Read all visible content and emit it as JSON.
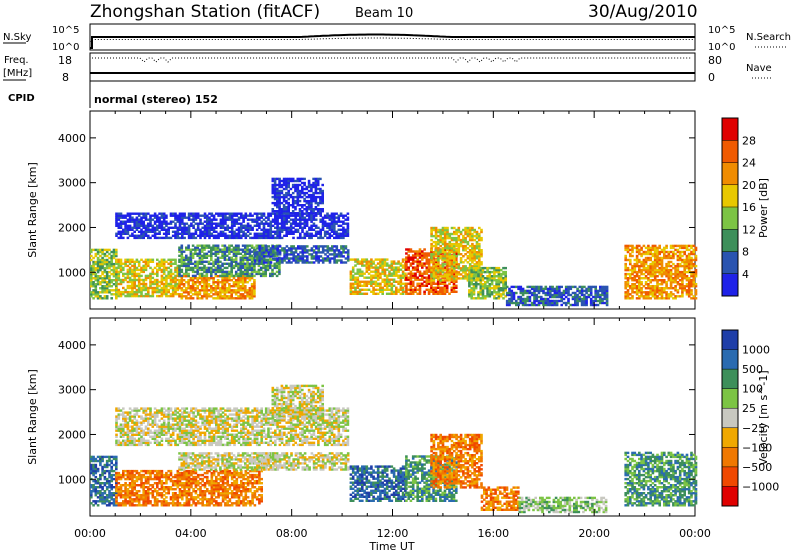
{
  "header": {
    "station": "Zhongshan Station (fitACF)",
    "beam": "Beam 10",
    "date": "30/Aug/2010",
    "cpid_label": "CPID",
    "cpid_value": "normal (stereo) 152"
  },
  "strip_sky": {
    "left_label": "N.Sky",
    "left_ticks": [
      "10^5",
      "10^0"
    ],
    "right_label": "N.Search",
    "right_ticks": [
      "10^5",
      "10^0"
    ]
  },
  "strip_freq": {
    "left_label_1": "Freq.",
    "left_label_2": "[MHz]",
    "left_ticks": [
      "18",
      "8"
    ],
    "right_label": "Nave",
    "right_ticks": [
      "80",
      "0"
    ]
  },
  "x_axis": {
    "label": "Time UT",
    "ticks": [
      "00:00",
      "04:00",
      "08:00",
      "12:00",
      "16:00",
      "20:00",
      "00:00"
    ],
    "range_hours": [
      0,
      24
    ]
  },
  "chart_data": [
    {
      "type": "heatmap",
      "panel": "power",
      "ylabel": "Slant Range [km]",
      "yticks": [
        1000,
        2000,
        3000,
        4000
      ],
      "ylim": [
        180,
        4600
      ],
      "xlim": [
        0,
        24
      ],
      "colorbar_label": "Power [dB]",
      "colorbar_ticks": [
        "4",
        "8",
        "12",
        "16",
        "20",
        "24",
        "28"
      ],
      "colorbar_colors": [
        "#1f22e8",
        "#2a54b0",
        "#3d8f5a",
        "#7cc444",
        "#e8c800",
        "#f08c00",
        "#f05a00",
        "#e00000"
      ],
      "regions": [
        {
          "t0": 0.0,
          "t1": 1.0,
          "r0": 400,
          "r1": 1500,
          "lvl": 3
        },
        {
          "t0": 1.0,
          "t1": 3.5,
          "r0": 450,
          "r1": 1300,
          "lvl": 4
        },
        {
          "t0": 3.5,
          "t1": 6.5,
          "r0": 400,
          "r1": 900,
          "lvl": 5
        },
        {
          "t0": 3.5,
          "t1": 7.5,
          "r0": 900,
          "r1": 1600,
          "lvl": 2
        },
        {
          "t0": 1.0,
          "t1": 10.2,
          "r0": 1750,
          "r1": 2300,
          "lvl": 0
        },
        {
          "t0": 6.5,
          "t1": 10.2,
          "r0": 1200,
          "r1": 1600,
          "lvl": 1
        },
        {
          "t0": 7.2,
          "t1": 9.2,
          "r0": 2300,
          "r1": 3100,
          "lvl": 0
        },
        {
          "t0": 10.3,
          "t1": 12.5,
          "r0": 500,
          "r1": 1300,
          "lvl": 4
        },
        {
          "t0": 12.5,
          "t1": 14.5,
          "r0": 500,
          "r1": 1500,
          "lvl": 6
        },
        {
          "t0": 13.5,
          "t1": 15.5,
          "r0": 800,
          "r1": 2000,
          "lvl": 4
        },
        {
          "t0": 15.0,
          "t1": 16.5,
          "r0": 400,
          "r1": 1100,
          "lvl": 3
        },
        {
          "t0": 16.5,
          "t1": 20.5,
          "r0": 250,
          "r1": 700,
          "lvl": 1
        },
        {
          "t0": 21.2,
          "t1": 24.0,
          "r0": 400,
          "r1": 1600,
          "lvl": 5
        }
      ]
    },
    {
      "type": "heatmap",
      "panel": "velocity",
      "ylabel": "Slant Range [km]",
      "yticks": [
        1000,
        2000,
        3000,
        4000
      ],
      "ylim": [
        180,
        4600
      ],
      "xlim": [
        0,
        24
      ],
      "colorbar_label": "Velocity [m s^-1]",
      "colorbar_ticks": [
        "1000",
        "500",
        "100",
        "25",
        "−25",
        "−100",
        "−500",
        "−1000"
      ],
      "colorbar_colors": [
        "#1f3ea8",
        "#2a6bb0",
        "#3d8f5a",
        "#7cc444",
        "#c8c8c0",
        "#f0a800",
        "#f07800",
        "#f04800",
        "#e00000"
      ],
      "regions": [
        {
          "t0": 0.0,
          "t1": 1.0,
          "r0": 400,
          "r1": 1500,
          "lvl": 1
        },
        {
          "t0": 1.0,
          "t1": 6.8,
          "r0": 400,
          "r1": 1200,
          "lvl": 6
        },
        {
          "t0": 3.5,
          "t1": 7.5,
          "r0": 1200,
          "r1": 1600,
          "lvl": 4
        },
        {
          "t0": 1.0,
          "t1": 10.2,
          "r0": 1750,
          "r1": 2600,
          "lvl": 4
        },
        {
          "t0": 7.2,
          "t1": 9.2,
          "r0": 2300,
          "r1": 3100,
          "lvl": 4
        },
        {
          "t0": 6.5,
          "t1": 10.2,
          "r0": 1200,
          "r1": 1600,
          "lvl": 4
        },
        {
          "t0": 10.3,
          "t1": 12.5,
          "r0": 500,
          "r1": 1300,
          "lvl": 1
        },
        {
          "t0": 12.5,
          "t1": 14.5,
          "r0": 500,
          "r1": 1500,
          "lvl": 2
        },
        {
          "t0": 13.5,
          "t1": 15.5,
          "r0": 800,
          "r1": 2000,
          "lvl": 6
        },
        {
          "t0": 15.5,
          "t1": 17.0,
          "r0": 300,
          "r1": 800,
          "lvl": 6
        },
        {
          "t0": 17.0,
          "t1": 20.5,
          "r0": 250,
          "r1": 600,
          "lvl": 3
        },
        {
          "t0": 21.2,
          "t1": 24.0,
          "r0": 400,
          "r1": 1600,
          "lvl": 2
        }
      ]
    }
  ]
}
